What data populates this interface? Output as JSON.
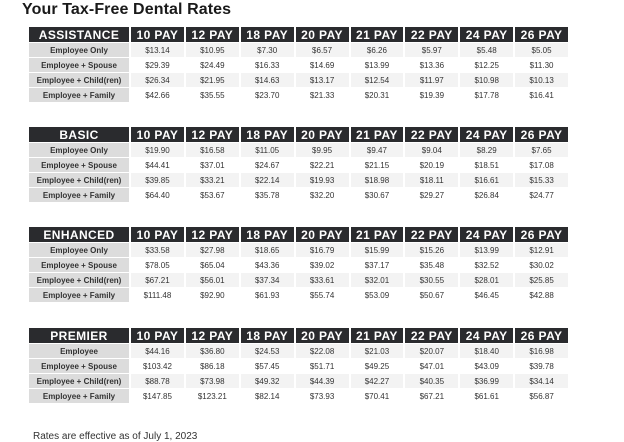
{
  "title": "Your Tax-Free Dental Rates",
  "pay_columns": [
    "10 PAY",
    "12 PAY",
    "18 PAY",
    "20 PAY",
    "21 PAY",
    "22 PAY",
    "24 PAY",
    "26 PAY"
  ],
  "tables": [
    {
      "name": "ASSISTANCE",
      "rows": [
        {
          "label": "Employee Only",
          "values": [
            "$13.14",
            "$10.95",
            "$7.30",
            "$6.57",
            "$6.26",
            "$5.97",
            "$5.48",
            "$5.05"
          ]
        },
        {
          "label": "Employee + Spouse",
          "values": [
            "$29.39",
            "$24.49",
            "$16.33",
            "$14.69",
            "$13.99",
            "$13.36",
            "$12.25",
            "$11.30"
          ]
        },
        {
          "label": "Employee + Child(ren)",
          "values": [
            "$26.34",
            "$21.95",
            "$14.63",
            "$13.17",
            "$12.54",
            "$11.97",
            "$10.98",
            "$10.13"
          ]
        },
        {
          "label": "Employee + Family",
          "values": [
            "$42.66",
            "$35.55",
            "$23.70",
            "$21.33",
            "$20.31",
            "$19.39",
            "$17.78",
            "$16.41"
          ]
        }
      ]
    },
    {
      "name": "BASIC",
      "rows": [
        {
          "label": "Employee Only",
          "values": [
            "$19.90",
            "$16.58",
            "$11.05",
            "$9.95",
            "$9.47",
            "$9.04",
            "$8.29",
            "$7.65"
          ]
        },
        {
          "label": "Employee + Spouse",
          "values": [
            "$44.41",
            "$37.01",
            "$24.67",
            "$22.21",
            "$21.15",
            "$20.19",
            "$18.51",
            "$17.08"
          ]
        },
        {
          "label": "Employee + Child(ren)",
          "values": [
            "$39.85",
            "$33.21",
            "$22.14",
            "$19.93",
            "$18.98",
            "$18.11",
            "$16.61",
            "$15.33"
          ]
        },
        {
          "label": "Employee + Family",
          "values": [
            "$64.40",
            "$53.67",
            "$35.78",
            "$32.20",
            "$30.67",
            "$29.27",
            "$26.84",
            "$24.77"
          ]
        }
      ]
    },
    {
      "name": "ENHANCED",
      "rows": [
        {
          "label": "Employee Only",
          "values": [
            "$33.58",
            "$27.98",
            "$18.65",
            "$16.79",
            "$15.99",
            "$15.26",
            "$13.99",
            "$12.91"
          ]
        },
        {
          "label": "Employee + Spouse",
          "values": [
            "$78.05",
            "$65.04",
            "$43.36",
            "$39.02",
            "$37.17",
            "$35.48",
            "$32.52",
            "$30.02"
          ]
        },
        {
          "label": "Employee + Child(ren)",
          "values": [
            "$67.21",
            "$56.01",
            "$37.34",
            "$33.61",
            "$32.01",
            "$30.55",
            "$28.01",
            "$25.85"
          ]
        },
        {
          "label": "Employee + Family",
          "values": [
            "$111.48",
            "$92.90",
            "$61.93",
            "$55.74",
            "$53.09",
            "$50.67",
            "$46.45",
            "$42.88"
          ]
        }
      ]
    },
    {
      "name": "PREMIER",
      "rows": [
        {
          "label": "Employee",
          "values": [
            "$44.16",
            "$36.80",
            "$24.53",
            "$22.08",
            "$21.03",
            "$20.07",
            "$18.40",
            "$16.98"
          ]
        },
        {
          "label": "Employee + Spouse",
          "values": [
            "$103.42",
            "$86.18",
            "$57.45",
            "$51.71",
            "$49.25",
            "$47.01",
            "$43.09",
            "$39.78"
          ]
        },
        {
          "label": "Employee + Child(ren)",
          "values": [
            "$88.78",
            "$73.98",
            "$49.32",
            "$44.39",
            "$42.27",
            "$40.35",
            "$36.99",
            "$34.14"
          ]
        },
        {
          "label": "Employee + Family",
          "values": [
            "$147.85",
            "$123.21",
            "$82.14",
            "$73.93",
            "$70.41",
            "$67.21",
            "$61.61",
            "$56.87"
          ]
        }
      ]
    }
  ],
  "footer": "Rates are effective as of July 1, 2023"
}
